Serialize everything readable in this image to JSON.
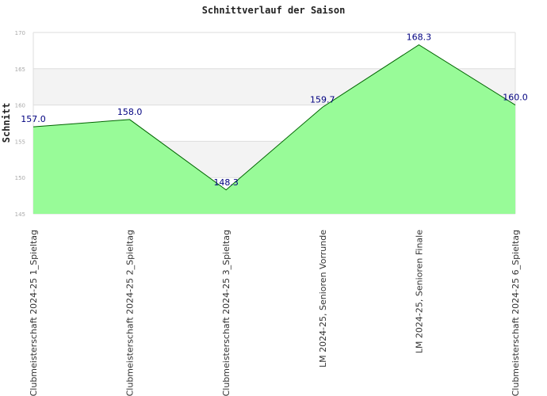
{
  "chart_data": {
    "type": "area",
    "title": "Schnittverlauf der Saison",
    "xlabel": "",
    "ylabel": "Schnitt",
    "ylim": [
      145,
      170
    ],
    "yticks": [
      145,
      150,
      155,
      160,
      165,
      170
    ],
    "grid": true,
    "legend": "none",
    "categories": [
      "Clubmeisterschaft 2024-25   1_Spieltag",
      "Clubmeisterschaft 2024-25   2_Spieltag",
      "Clubmeisterschaft 2024-25   3_Spieltag",
      "LM 2024-25, Senioren Vorrunde",
      "LM 2024-25, Senioren Finale",
      "Clubmeisterschaft 2024-25   6_Spieltag"
    ],
    "values": [
      157.0,
      158.0,
      148.3,
      159.7,
      168.3,
      160.0
    ],
    "data_labels": [
      "157.0",
      "158.0",
      "148.3",
      "159.7",
      "168.3",
      "160.0"
    ],
    "colors": {
      "fill": "#98fb98",
      "line": "#006400",
      "band": "#f3f3f3",
      "grid": "#dddddd",
      "label": "#000080"
    }
  }
}
